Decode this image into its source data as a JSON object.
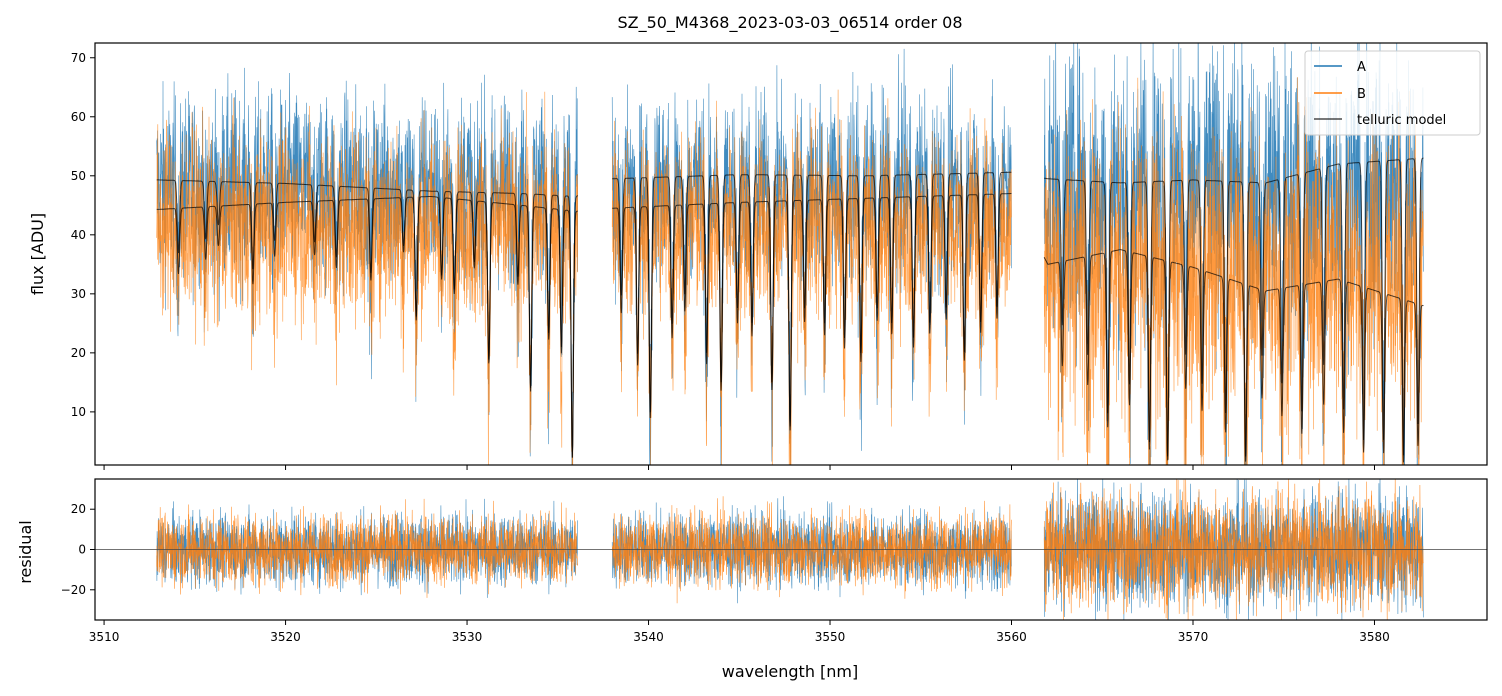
{
  "chart_data": [
    {
      "type": "line",
      "panel": "upper",
      "title": "SZ_50_M4368_2023-03-03_06514  order 08",
      "ylabel": "flux [ADU]",
      "xlim": [
        3509.5,
        3586.2
      ],
      "ylim": [
        1,
        72.5
      ],
      "yticks": [
        10,
        20,
        30,
        40,
        50,
        60,
        70
      ],
      "legend": {
        "placement": "top-right",
        "entries": [
          "A",
          "B",
          "telluric model"
        ]
      },
      "grid": false,
      "segments": [
        [
          3512.9,
          3536.1
        ],
        [
          3538.0,
          3560.0
        ],
        [
          3561.8,
          3582.7
        ]
      ],
      "series": [
        {
          "name": "A",
          "color": "#1f77b4",
          "style": "noisy spectrum",
          "approx_level": 48,
          "approx_noise": 8
        },
        {
          "name": "B",
          "color": "#ff7f0e",
          "style": "noisy spectrum",
          "approx_level": 42,
          "approx_noise": 8
        },
        {
          "name": "telluric model",
          "color": "#000000",
          "continuum_traces": [
            {
              "x": [
                3513,
                3520,
                3528,
                3533,
                3536,
                3538,
                3545,
                3552,
                3560,
                3562,
                3566,
                3570,
                3574,
                3578,
                3582.7
              ],
              "y": [
                49.3,
                48.7,
                47.4,
                47.0,
                46.5,
                49.5,
                50.2,
                50.0,
                50.6,
                49.5,
                48.8,
                49.3,
                48.8,
                52.0,
                53.0
              ]
            },
            {
              "x": [
                3513,
                3520,
                3528,
                3533,
                3536,
                3538,
                3545,
                3552,
                3560,
                3562,
                3566,
                3570,
                3574,
                3578,
                3582.7
              ],
              "y": [
                44.3,
                45.5,
                46.5,
                45.0,
                44.0,
                44.5,
                45.5,
                46.2,
                47.0,
                35.0,
                37.5,
                34.5,
                30.5,
                32.5,
                28.0
              ]
            }
          ],
          "absorption_lines_nm": [
            3514.1,
            3515.6,
            3516.3,
            3518.2,
            3519.4,
            3521.6,
            3522.8,
            3524.7,
            3526.5,
            3527.2,
            3528.6,
            3529.3,
            3530.4,
            3531.2,
            3532.8,
            3533.5,
            3534.5,
            3535.2,
            3535.8,
            3538.5,
            3539.4,
            3540.1,
            3541.3,
            3542.0,
            3543.2,
            3544.0,
            3544.9,
            3545.7,
            3546.8,
            3547.8,
            3548.6,
            3549.7,
            3550.8,
            3551.7,
            3552.6,
            3553.4,
            3554.6,
            3555.5,
            3556.4,
            3557.4,
            3558.3,
            3559.2,
            3562.8,
            3564.2,
            3565.3,
            3566.5,
            3567.6,
            3568.6,
            3569.6,
            3570.5,
            3571.8,
            3572.9,
            3573.8,
            3574.9,
            3576.0,
            3577.2,
            3578.3,
            3579.4,
            3580.5,
            3581.6,
            3582.4
          ],
          "absorption_depths": [
            0.25,
            0.2,
            0.15,
            0.3,
            0.2,
            0.2,
            0.25,
            0.3,
            0.2,
            0.45,
            0.3,
            0.35,
            0.25,
            0.6,
            0.3,
            0.7,
            0.5,
            0.55,
            0.95,
            0.4,
            0.6,
            0.8,
            0.5,
            0.4,
            0.6,
            0.7,
            0.45,
            0.5,
            0.7,
            0.85,
            0.45,
            0.5,
            0.55,
            0.6,
            0.45,
            0.5,
            0.55,
            0.5,
            0.45,
            0.6,
            0.5,
            0.45,
            0.5,
            0.6,
            0.8,
            0.7,
            0.9,
            0.95,
            0.6,
            0.7,
            0.8,
            0.95,
            0.6,
            0.7,
            0.8,
            0.65,
            0.8,
            0.9,
            0.9,
            0.95,
            0.85
          ]
        }
      ]
    },
    {
      "type": "line",
      "panel": "lower",
      "xlabel": "wavelength [nm]",
      "ylabel": "residual",
      "xlim": [
        3509.5,
        3586.2
      ],
      "ylim": [
        -35,
        35
      ],
      "xticks": [
        3510,
        3520,
        3530,
        3540,
        3550,
        3560,
        3570,
        3580
      ],
      "yticks": [
        -20,
        0,
        20
      ],
      "zero_line": true,
      "segments": [
        [
          3512.9,
          3536.1
        ],
        [
          3538.0,
          3560.0
        ],
        [
          3561.8,
          3582.7
        ]
      ],
      "series": [
        {
          "name": "A",
          "color": "#1f77b4",
          "approx_noise": 9
        },
        {
          "name": "B",
          "color": "#ff7f0e",
          "approx_noise": 9
        }
      ]
    }
  ]
}
